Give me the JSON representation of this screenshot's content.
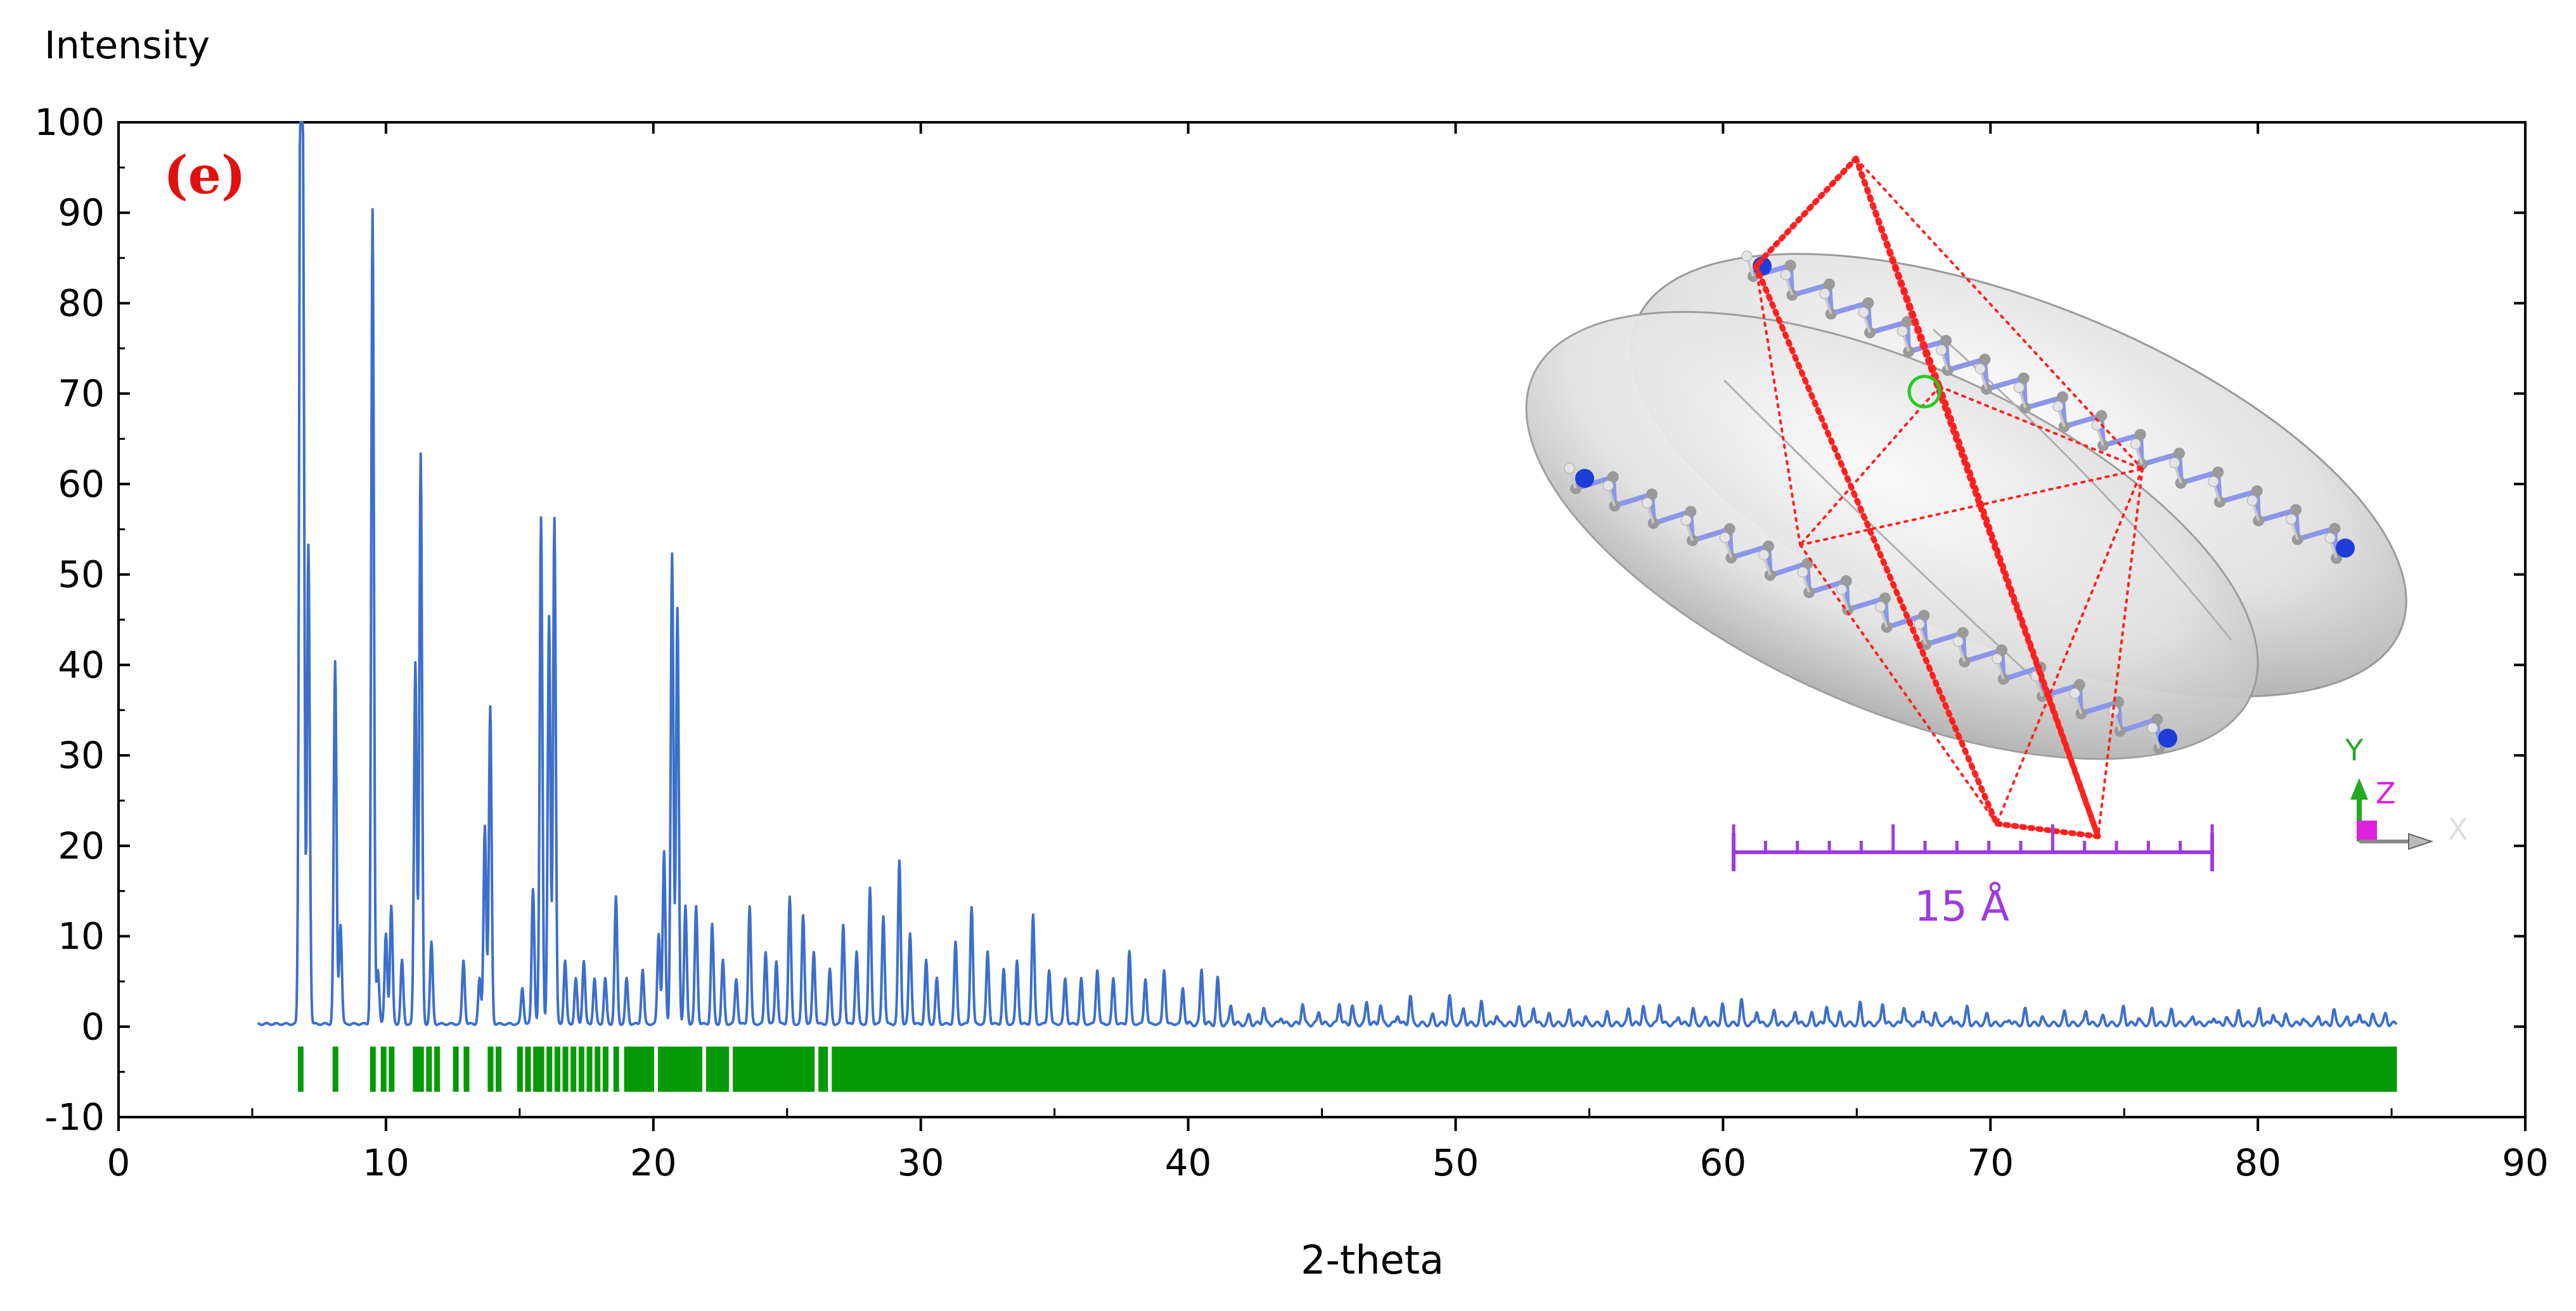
{
  "chart_data": {
    "type": "line",
    "panel_label": "(e)",
    "ylabel": "Intensity",
    "xlabel": "2-theta",
    "xlim": [
      0,
      90
    ],
    "ylim": [
      -10,
      100
    ],
    "x_ticks": [
      0,
      10,
      20,
      30,
      40,
      50,
      60,
      70,
      80,
      90
    ],
    "y_ticks": [
      100,
      90,
      80,
      70,
      60,
      50,
      40,
      30,
      20,
      10,
      0,
      -10
    ],
    "grid": false,
    "series": [
      {
        "color": "#3c6fcc",
        "x_start": 5.2,
        "x_end": 85.2,
        "baseline": 0.3,
        "peaks": [
          [
            6.8,
            100
          ],
          [
            6.9,
            85
          ],
          [
            7.1,
            53
          ],
          [
            8.1,
            40
          ],
          [
            8.3,
            11
          ],
          [
            9.5,
            90
          ],
          [
            9.7,
            6
          ],
          [
            10.0,
            10
          ],
          [
            10.2,
            13
          ],
          [
            10.6,
            7
          ],
          [
            11.1,
            40
          ],
          [
            11.3,
            63
          ],
          [
            11.7,
            9
          ],
          [
            12.9,
            7
          ],
          [
            13.5,
            5
          ],
          [
            13.7,
            22
          ],
          [
            13.9,
            35
          ],
          [
            15.1,
            4
          ],
          [
            15.5,
            15
          ],
          [
            15.8,
            56
          ],
          [
            16.1,
            45
          ],
          [
            16.3,
            56
          ],
          [
            16.7,
            7
          ],
          [
            17.1,
            5
          ],
          [
            17.4,
            7
          ],
          [
            17.8,
            5
          ],
          [
            18.2,
            5
          ],
          [
            18.6,
            14
          ],
          [
            19.0,
            5
          ],
          [
            19.6,
            6
          ],
          [
            20.2,
            10
          ],
          [
            20.4,
            19
          ],
          [
            20.7,
            52
          ],
          [
            20.9,
            46
          ],
          [
            21.2,
            13
          ],
          [
            21.6,
            13
          ],
          [
            22.2,
            11
          ],
          [
            22.6,
            7
          ],
          [
            23.1,
            5
          ],
          [
            23.6,
            13
          ],
          [
            24.2,
            8
          ],
          [
            24.6,
            7
          ],
          [
            25.1,
            14
          ],
          [
            25.6,
            12
          ],
          [
            26.0,
            8
          ],
          [
            26.6,
            6
          ],
          [
            27.1,
            11
          ],
          [
            27.6,
            8
          ],
          [
            28.1,
            15
          ],
          [
            28.6,
            12
          ],
          [
            29.2,
            18
          ],
          [
            29.6,
            10
          ],
          [
            30.2,
            7
          ],
          [
            30.6,
            5
          ],
          [
            31.3,
            9
          ],
          [
            31.9,
            13
          ],
          [
            32.5,
            8
          ],
          [
            33.1,
            6
          ],
          [
            33.6,
            7
          ],
          [
            34.2,
            12
          ],
          [
            34.8,
            6
          ],
          [
            35.4,
            5
          ],
          [
            36.0,
            5
          ],
          [
            36.6,
            6
          ],
          [
            37.2,
            5
          ],
          [
            37.8,
            8
          ],
          [
            38.4,
            5
          ],
          [
            39.1,
            6
          ],
          [
            39.8,
            4
          ],
          [
            40.5,
            6
          ],
          [
            41.1,
            5
          ]
        ],
        "decay": {
          "to_x": 85.2,
          "peak_max_at_45": 3,
          "peak_max_at_85": 1
        }
      }
    ],
    "reflection_ticks": {
      "color": "#059a05",
      "y_top": -2.2,
      "y_bottom": -7.2,
      "positions": [
        6.8,
        8.1,
        9.5,
        9.9,
        10.2,
        11.1,
        11.3,
        11.6,
        11.9,
        12.6,
        13.0,
        13.9,
        14.2,
        15.0,
        15.3,
        15.6,
        15.8,
        16.1,
        16.4,
        16.7,
        17.0,
        17.3,
        17.6,
        17.9,
        18.2,
        18.6,
        19.0
      ],
      "dense_from": 19.0,
      "dense_to": 85.2,
      "gaps": [
        20.1,
        21.9,
        22.9,
        26.1,
        26.6
      ]
    }
  },
  "inset": {
    "scale_label": "15 Å",
    "axis_labels": {
      "y": "Y",
      "z": "Z",
      "x": "X"
    },
    "colors": {
      "cell_lines": "#ff2020",
      "scale_bar": "#9e3bdf",
      "ellipsoid_fill": "#e6e6e6",
      "bond": "#8c96e8",
      "carbon": "#9a9a9a",
      "nitrogen": "#1d3cd8",
      "hydrogen": "#e4e4e4",
      "origin_ring": "#22cc22",
      "axis_y": "#22aa22",
      "axis_z": "#dd22dd"
    }
  }
}
